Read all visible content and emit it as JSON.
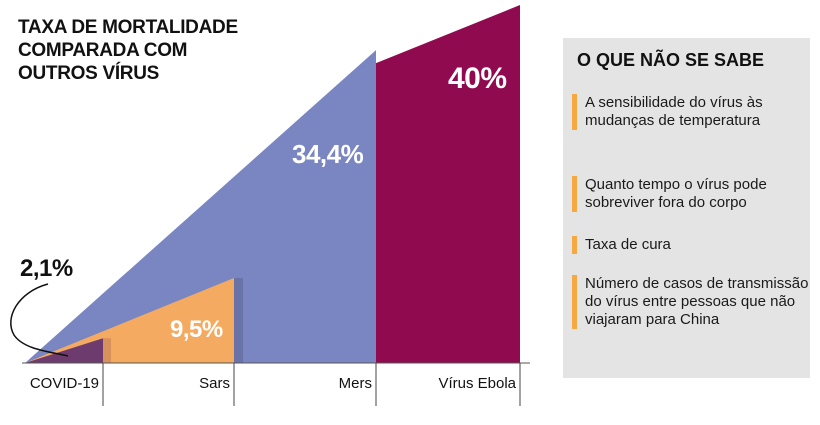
{
  "title": "TAXA DE MORTALIDADE\nCOMPARADA COM\nOUTROS VÍRUS",
  "chart_data": {
    "type": "area",
    "title": "TAXA DE MORTALIDADE COMPARADA COM OUTROS VÍRUS",
    "categories": [
      "COVID-19",
      "Sars",
      "Mers",
      "Vírus Ebola"
    ],
    "values": [
      2.1,
      9.5,
      34.4,
      40
    ],
    "value_labels": [
      "2,1%",
      "9,5%",
      "34,4%",
      "40%"
    ],
    "unit": "%",
    "ylim": [
      0,
      40
    ],
    "colors": [
      "#6d3b6d",
      "#f4ab61",
      "#7a86c2",
      "#900a50"
    ]
  },
  "panel": {
    "title": "O QUE NÃO SE SABE",
    "accent": "#f5a940",
    "items": [
      "A sensibilidade do vírus às mudanças de temperatura",
      "Quanto tempo o vírus pode sobreviver fora do corpo",
      "Taxa de cura",
      "Número de casos de transmissão do vírus entre pessoas que não viajaram para China"
    ]
  }
}
